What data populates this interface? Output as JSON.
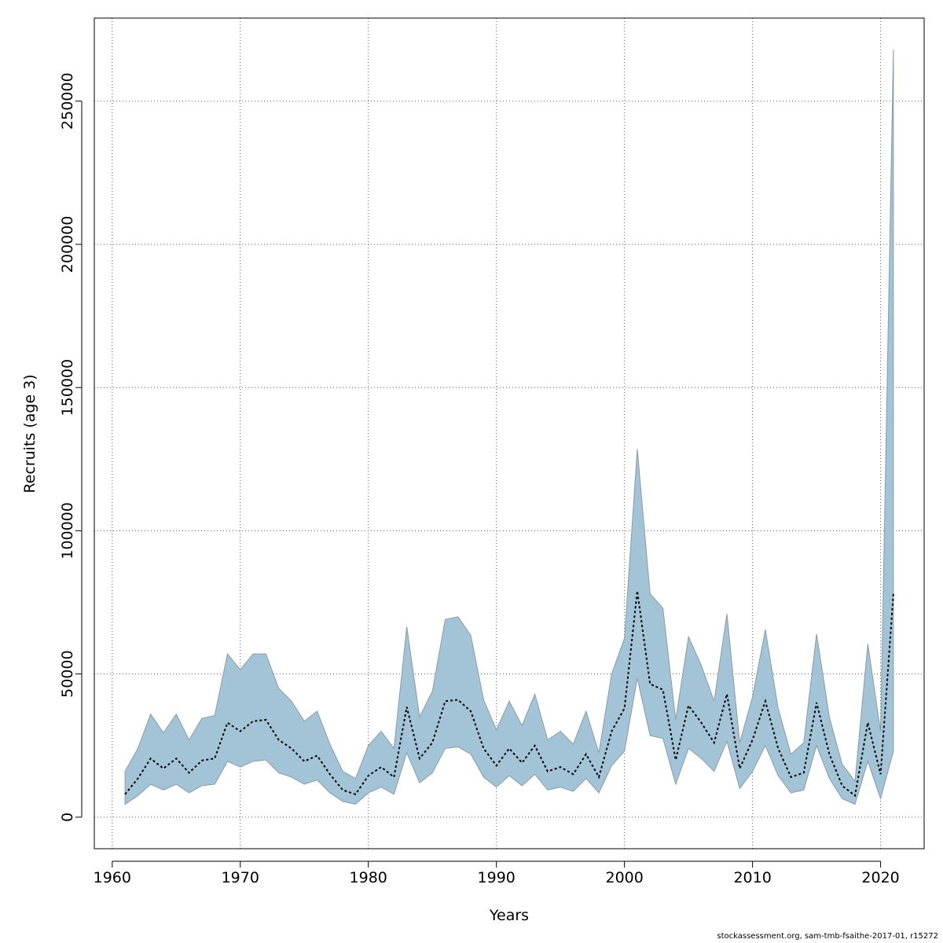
{
  "chart_data": {
    "type": "area",
    "xlabel": "Years",
    "ylabel": "Recruits (age 3)",
    "xlim": [
      1958.6,
      2023.4
    ],
    "ylim": [
      -11000,
      279000
    ],
    "x_ticks": [
      1960,
      1970,
      1980,
      1990,
      2000,
      2010,
      2020
    ],
    "y_ticks": [
      0,
      50000,
      100000,
      150000,
      200000,
      250000
    ],
    "grid": true,
    "colors": {
      "band_fill": "#a3c4d6",
      "band_stroke": "#8a9ba6",
      "line": "#000000",
      "grid": "#555555"
    },
    "x": [
      1961,
      1962,
      1963,
      1964,
      1965,
      1966,
      1967,
      1968,
      1969,
      1970,
      1971,
      1972,
      1973,
      1974,
      1975,
      1976,
      1977,
      1978,
      1979,
      1980,
      1981,
      1982,
      1983,
      1984,
      1985,
      1986,
      1987,
      1988,
      1989,
      1990,
      1991,
      1992,
      1993,
      1994,
      1995,
      1996,
      1997,
      1998,
      1999,
      2000,
      2001,
      2002,
      2003,
      2004,
      2005,
      2006,
      2007,
      2008,
      2009,
      2010,
      2011,
      2012,
      2013,
      2014,
      2015,
      2016,
      2017,
      2018,
      2019,
      2020,
      2021
    ],
    "series": [
      {
        "role": "estimate",
        "values": [
          8000,
          13500,
          20500,
          17000,
          20500,
          15500,
          19800,
          20500,
          33000,
          30000,
          33500,
          34000,
          27000,
          24000,
          19500,
          21500,
          15000,
          9500,
          8000,
          14500,
          17500,
          14000,
          38500,
          20500,
          26000,
          40500,
          41000,
          37000,
          24000,
          18000,
          24000,
          19000,
          25000,
          16000,
          17500,
          15000,
          22000,
          14000,
          30000,
          38000,
          79000,
          46500,
          44500,
          20000,
          39000,
          33000,
          26000,
          43000,
          17000,
          27000,
          40500,
          24000,
          14000,
          15500,
          40000,
          22000,
          11000,
          7500,
          33000,
          15000,
          78000
        ]
      },
      {
        "role": "lower",
        "values": [
          4500,
          7500,
          11500,
          9500,
          11500,
          8500,
          11000,
          11500,
          19500,
          17500,
          19500,
          20000,
          15500,
          14000,
          11500,
          13000,
          8500,
          5500,
          4500,
          8500,
          10500,
          8000,
          22500,
          12000,
          15500,
          24000,
          24500,
          22000,
          14000,
          10500,
          14500,
          11000,
          15000,
          9500,
          10500,
          9000,
          13500,
          8500,
          18000,
          23000,
          48500,
          28500,
          27500,
          11500,
          24000,
          20500,
          16000,
          26500,
          10000,
          16000,
          25000,
          14500,
          8500,
          9500,
          25000,
          13500,
          6500,
          4500,
          19500,
          6500,
          23000
        ]
      },
      {
        "role": "upper",
        "values": [
          16000,
          24000,
          36000,
          29500,
          36000,
          27000,
          34500,
          35500,
          57000,
          51500,
          57000,
          57000,
          45000,
          40500,
          33500,
          37000,
          25500,
          16000,
          13500,
          25000,
          30000,
          24000,
          66500,
          35000,
          44000,
          69000,
          70000,
          63500,
          41000,
          30500,
          40500,
          32000,
          43000,
          27000,
          30000,
          25500,
          37000,
          22500,
          50000,
          62500,
          128500,
          78000,
          73000,
          34000,
          63000,
          53000,
          40500,
          71000,
          26000,
          42000,
          65500,
          38000,
          22000,
          26000,
          64000,
          35000,
          18500,
          12500,
          60500,
          30000,
          268000
        ]
      }
    ]
  },
  "footer": "stockassessment.org, sam-tmb-fsaithe-2017-01, r15272"
}
